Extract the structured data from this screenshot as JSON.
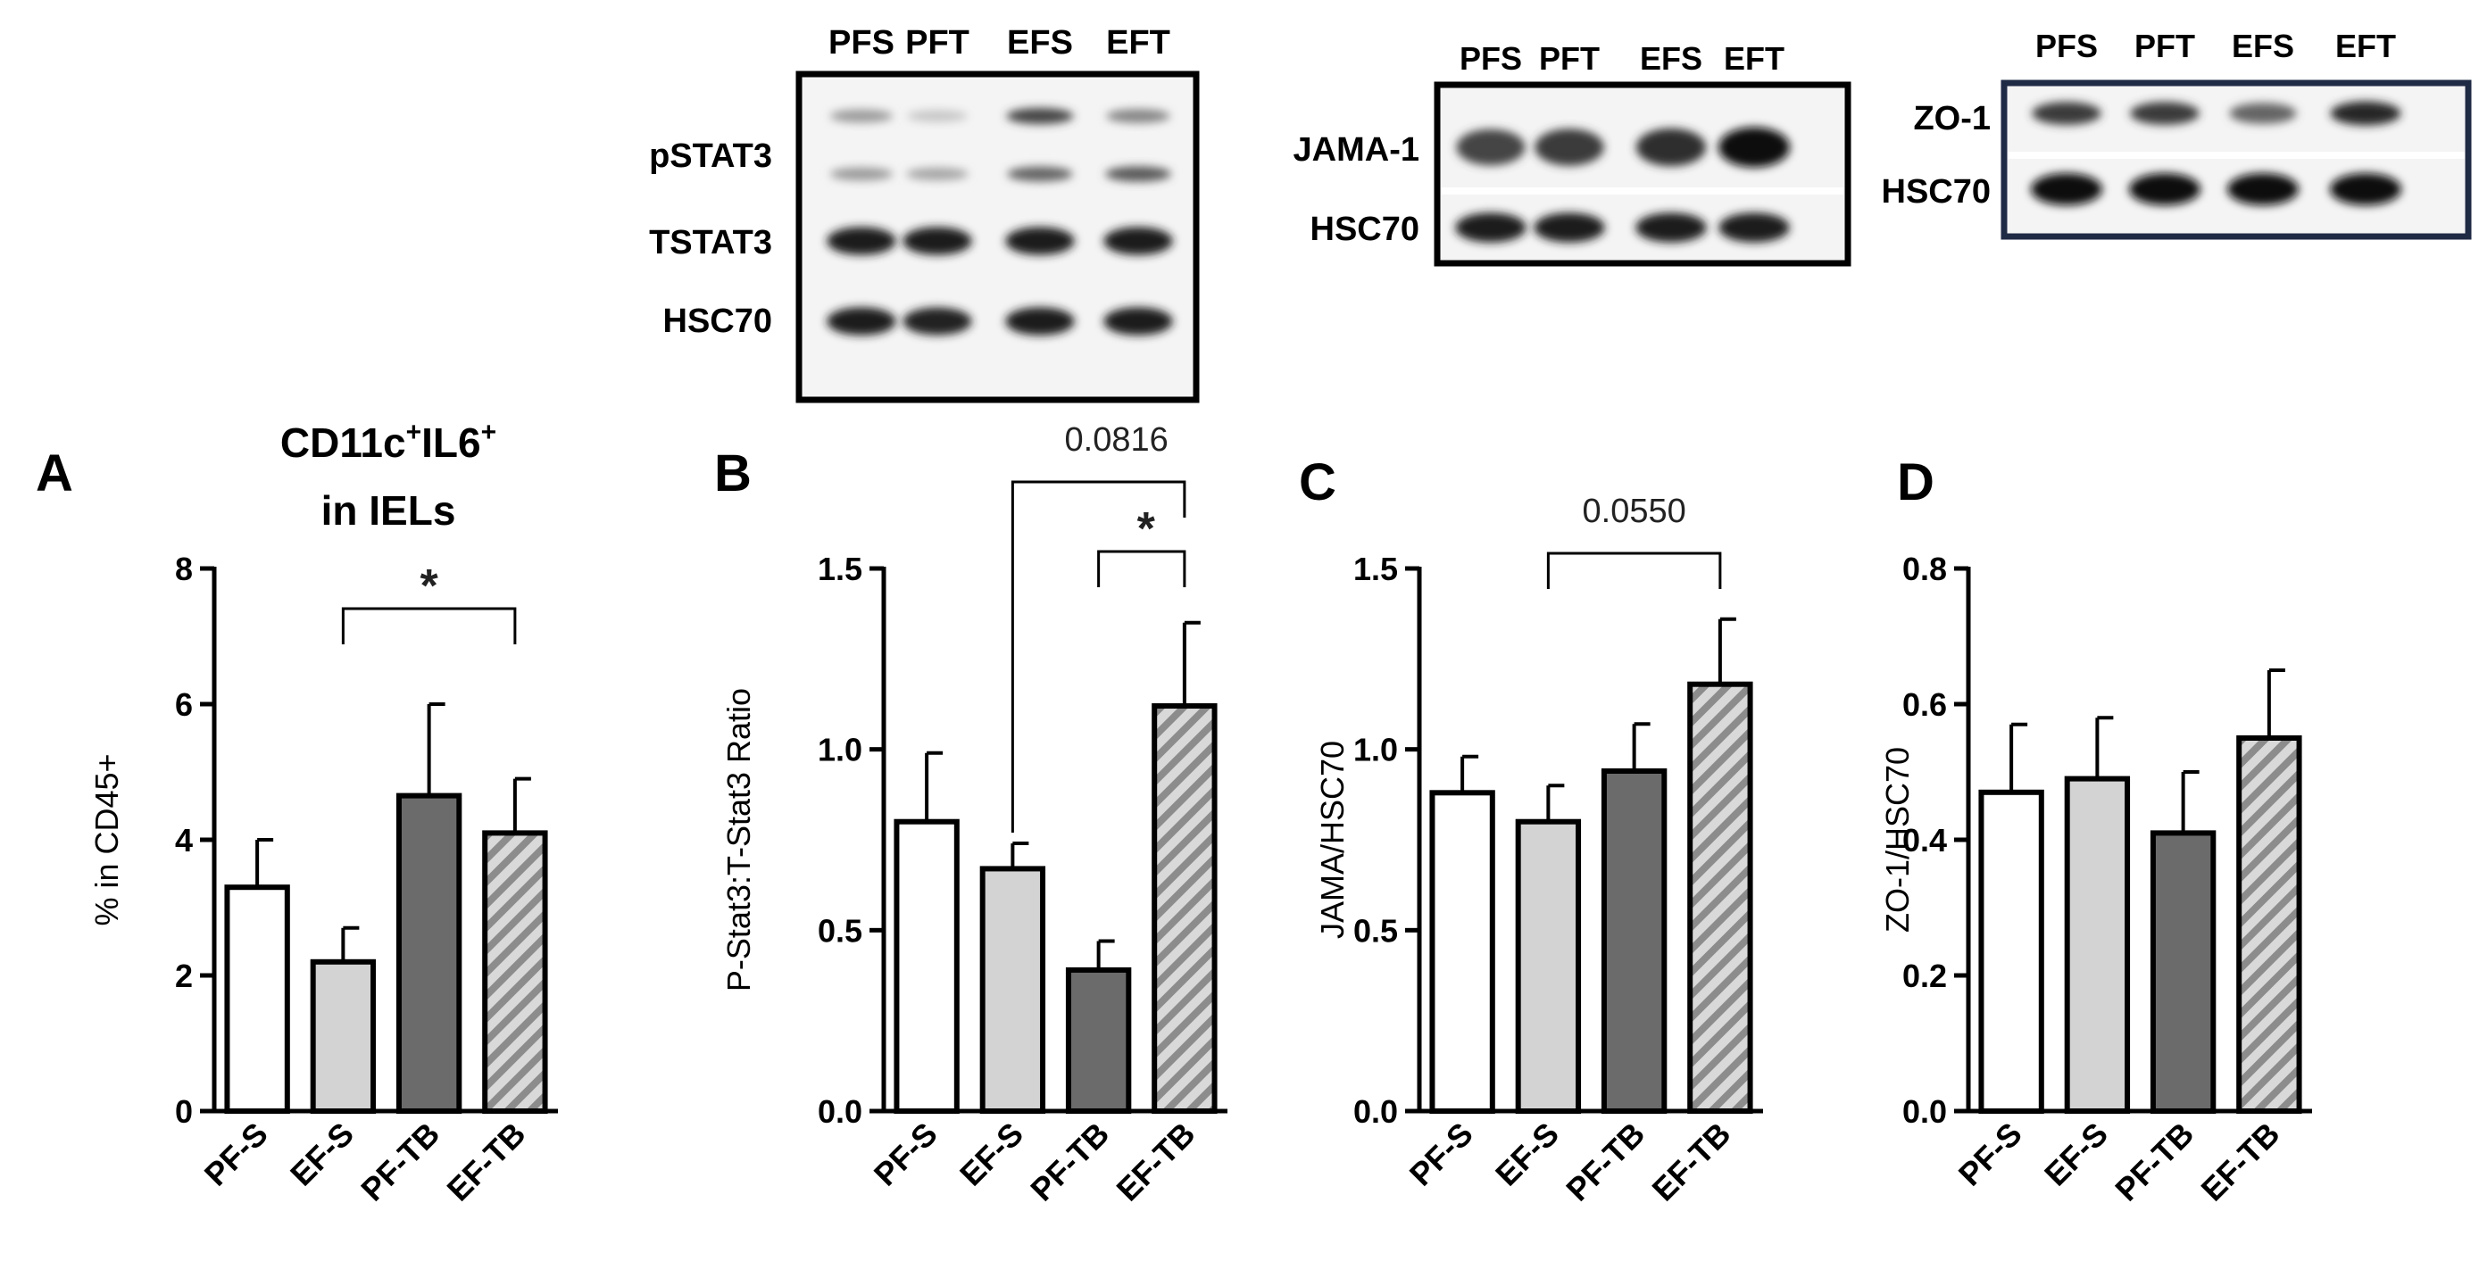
{
  "blots": [
    {
      "id": "stat3",
      "lanes": [
        "PFS",
        "PFT",
        "EFS",
        "EFT"
      ],
      "rows": [
        {
          "label": "pSTAT3",
          "bands": [
            0.35,
            0.15,
            0.75,
            0.45
          ],
          "bands2": [
            0.35,
            0.3,
            0.6,
            0.65
          ]
        },
        {
          "label": "TSTAT3",
          "bands": [
            0.95,
            0.95,
            0.95,
            0.95
          ]
        },
        {
          "label": "HSC70",
          "bands": [
            0.95,
            0.92,
            0.95,
            0.95
          ]
        }
      ]
    },
    {
      "id": "jama",
      "lanes": [
        "PFS",
        "PFT",
        "EFS",
        "EFT"
      ],
      "rows": [
        {
          "label": "JAMA-1",
          "bands": [
            0.75,
            0.8,
            0.85,
            1.0
          ]
        },
        {
          "label": "HSC70",
          "bands": [
            0.95,
            0.95,
            0.95,
            0.95
          ]
        }
      ]
    },
    {
      "id": "zo1",
      "lanes": [
        "PFS",
        "PFT",
        "EFS",
        "EFT"
      ],
      "rows": [
        {
          "label": "ZO-1",
          "bands": [
            0.8,
            0.8,
            0.6,
            0.9
          ]
        },
        {
          "label": "HSC70",
          "bands": [
            1.0,
            1.0,
            1.0,
            1.0
          ]
        }
      ]
    }
  ],
  "chart_data": [
    {
      "panel": "A",
      "type": "bar",
      "title": "CD11c⁺IL6⁺",
      "title_line1_base": "CD11c",
      "title_sup1": "+",
      "title_mid": "IL6",
      "title_sup2": "+",
      "title_line2": "in IELs",
      "ylabel": "% in CD45+",
      "categories": [
        "PF-S",
        "EF-S",
        "PF-TB",
        "EF-TB"
      ],
      "values": [
        3.3,
        2.2,
        4.65,
        4.1
      ],
      "errors": [
        0.7,
        0.5,
        1.35,
        0.8
      ],
      "ylim": [
        0,
        8
      ],
      "yticks": [
        "0",
        "2",
        "4",
        "6",
        "8"
      ],
      "bar_fills": [
        "#ffffff",
        "#d3d3d3",
        "#6b6b6b",
        "hatch"
      ],
      "annotations": [
        {
          "from": 1,
          "to": 3,
          "label": "*"
        }
      ]
    },
    {
      "panel": "B",
      "type": "bar",
      "ylabel": "P-Stat3:T-Stat3 Ratio",
      "categories": [
        "PF-S",
        "EF-S",
        "PF-TB",
        "EF-TB"
      ],
      "values": [
        0.8,
        0.67,
        0.39,
        1.12
      ],
      "errors": [
        0.19,
        0.07,
        0.08,
        0.23
      ],
      "ylim": [
        0,
        1.5
      ],
      "yticks": [
        "0.0",
        "0.5",
        "1.0",
        "1.5"
      ],
      "bar_fills": [
        "#ffffff",
        "#d3d3d3",
        "#6b6b6b",
        "hatch"
      ],
      "annotations": [
        {
          "from": 2,
          "to": 3,
          "label": "*"
        },
        {
          "from": 1,
          "to": 3,
          "label": "0.0816"
        }
      ]
    },
    {
      "panel": "C",
      "type": "bar",
      "ylabel": "JAMA/HSC70",
      "categories": [
        "PF-S",
        "EF-S",
        "PF-TB",
        "EF-TB"
      ],
      "values": [
        0.88,
        0.8,
        0.94,
        1.18
      ],
      "errors": [
        0.1,
        0.1,
        0.13,
        0.18
      ],
      "ylim": [
        0,
        1.5
      ],
      "yticks": [
        "0.0",
        "0.5",
        "1.0",
        "1.5"
      ],
      "bar_fills": [
        "#ffffff",
        "#d3d3d3",
        "#6b6b6b",
        "hatch"
      ],
      "annotations": [
        {
          "from": 1,
          "to": 3,
          "label": "0.0550"
        }
      ]
    },
    {
      "panel": "D",
      "type": "bar",
      "ylabel": "ZO-1/HSC70",
      "categories": [
        "PF-S",
        "EF-S",
        "PF-TB",
        "EF-TB"
      ],
      "values": [
        0.47,
        0.49,
        0.41,
        0.55
      ],
      "errors": [
        0.1,
        0.09,
        0.09,
        0.1
      ],
      "ylim": [
        0,
        0.8
      ],
      "yticks": [
        "0.0",
        "0.2",
        "0.4",
        "0.6",
        "0.8"
      ],
      "bar_fills": [
        "#ffffff",
        "#d3d3d3",
        "#6b6b6b",
        "hatch"
      ],
      "annotations": []
    }
  ]
}
